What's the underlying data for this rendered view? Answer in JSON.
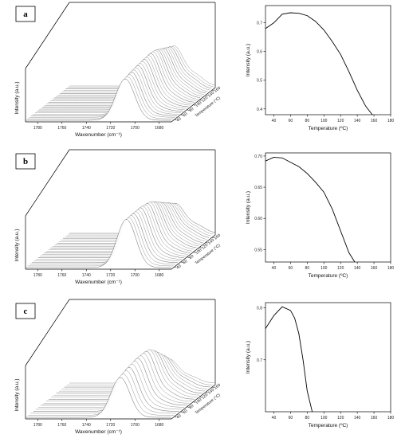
{
  "chart_data": [
    {
      "panel": "a",
      "type": "line",
      "variant": "waterfall-3d",
      "xlabel": "Wavenumber (cm⁻¹)",
      "ylabel": "Intensity (a.u.)",
      "zlabel": "Temperature (°C)",
      "x_ticks": [
        "1780",
        "1760",
        "1740",
        "1720",
        "1700",
        "1680"
      ],
      "z_ticks": [
        "40",
        "60",
        "80",
        "100",
        "120",
        "140",
        "160"
      ],
      "peak_wavenumber": 1708,
      "n_traces": 24
    },
    {
      "panel": "a",
      "type": "line",
      "xlabel": "Temperature (ºC)",
      "ylabel": "Intensity (a.u.)",
      "xlim": [
        30,
        180
      ],
      "ylim": [
        0.38,
        0.76
      ],
      "x_ticks": [
        "40",
        "60",
        "80",
        "100",
        "120",
        "140",
        "160",
        "180"
      ],
      "y_ticks": [
        "0.4",
        "0.5",
        "0.6",
        "0.7"
      ],
      "x": [
        30,
        40,
        50,
        60,
        70,
        80,
        90,
        100,
        110,
        120,
        130,
        140,
        150,
        158
      ],
      "y": [
        0.68,
        0.7,
        0.73,
        0.735,
        0.733,
        0.725,
        0.705,
        0.675,
        0.635,
        0.59,
        0.53,
        0.465,
        0.41,
        0.38
      ]
    },
    {
      "panel": "b",
      "type": "line",
      "variant": "waterfall-3d",
      "xlabel": "Wavenumber (cm⁻¹)",
      "ylabel": "Intensity (a.u.)",
      "zlabel": "Temperature (°C)",
      "x_ticks": [
        "1780",
        "1760",
        "1740",
        "1720",
        "1700",
        "1680"
      ],
      "z_ticks": [
        "40",
        "60",
        "80",
        "100",
        "120",
        "140",
        "160"
      ],
      "peak_wavenumber": 1707,
      "n_traces": 22
    },
    {
      "panel": "b",
      "type": "line",
      "xlabel": "Temperature (ºC)",
      "ylabel": "Intensity (a.u.)",
      "xlim": [
        30,
        180
      ],
      "ylim": [
        0.53,
        0.705
      ],
      "x_ticks": [
        "40",
        "60",
        "80",
        "100",
        "120",
        "140",
        "160",
        "180"
      ],
      "y_ticks": [
        "0.55",
        "0.60",
        "0.65",
        "0.70"
      ],
      "x": [
        30,
        40,
        50,
        60,
        70,
        80,
        90,
        100,
        110,
        120,
        130,
        137
      ],
      "y": [
        0.692,
        0.698,
        0.697,
        0.69,
        0.683,
        0.672,
        0.658,
        0.642,
        0.615,
        0.58,
        0.545,
        0.53
      ]
    },
    {
      "panel": "c",
      "type": "line",
      "variant": "waterfall-3d",
      "xlabel": "Wavenumber (cm⁻¹)",
      "ylabel": "Intensity (a.u.)",
      "zlabel": "Temperature (°C)",
      "x_ticks": [
        "1780",
        "1760",
        "1740",
        "1720",
        "1700",
        "1680"
      ],
      "z_ticks": [
        "40",
        "60",
        "80",
        "100",
        "120",
        "140",
        "160"
      ],
      "peak_wavenumber": 1712,
      "n_traces": 18
    },
    {
      "panel": "c",
      "type": "line",
      "xlabel": "Temperature (ºC)",
      "ylabel": "Intensity (a.u.)",
      "xlim": [
        30,
        180
      ],
      "ylim": [
        0.6,
        0.81
      ],
      "x_ticks": [
        "40",
        "60",
        "80",
        "100",
        "120",
        "140",
        "160",
        "180"
      ],
      "y_ticks": [
        "0.7",
        "0.8"
      ],
      "x": [
        30,
        40,
        50,
        60,
        65,
        70,
        75,
        80,
        86
      ],
      "y": [
        0.76,
        0.785,
        0.802,
        0.795,
        0.78,
        0.75,
        0.7,
        0.64,
        0.6
      ]
    }
  ]
}
